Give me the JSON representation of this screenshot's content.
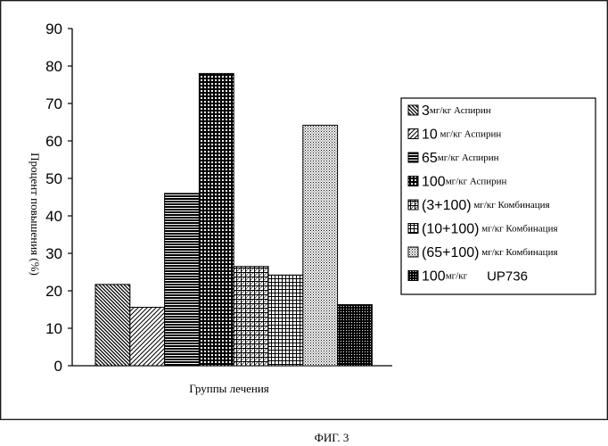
{
  "chart_data": {
    "type": "bar",
    "title": "",
    "xlabel": "Группы лечения",
    "ylabel": "Процент повышения (%)",
    "ylim": [
      0,
      90
    ],
    "yticks": [
      0,
      10,
      20,
      30,
      40,
      50,
      60,
      70,
      80,
      90
    ],
    "grid": false,
    "legend_position": "right",
    "series": [
      {
        "values": [
          21.7,
          15.6,
          46,
          78,
          26.5,
          24.2,
          64.2,
          16.3
        ]
      }
    ],
    "legend": [
      {
        "big": "3",
        "small": "мг/кг Аспирин",
        "tail": ""
      },
      {
        "big": "10",
        "small": " мг/кг Аспирин",
        "tail": ""
      },
      {
        "big": "65",
        "small": "мг/кг Аспирин",
        "tail": ""
      },
      {
        "big": "100",
        "small": "мг/кг Аспирин",
        "tail": ""
      },
      {
        "big": "(3+100)",
        "small": " мг/кг Комбинация",
        "tail": ""
      },
      {
        "big": "(10+100)",
        "small": " мг/кг Комбинация",
        "tail": ""
      },
      {
        "big": "(65+100)",
        "small": " мг/кг Комбинация",
        "tail": ""
      },
      {
        "big": "100",
        "small": "мг/кг",
        "tail": "UP736"
      }
    ]
  },
  "caption": "ФИГ. 3"
}
